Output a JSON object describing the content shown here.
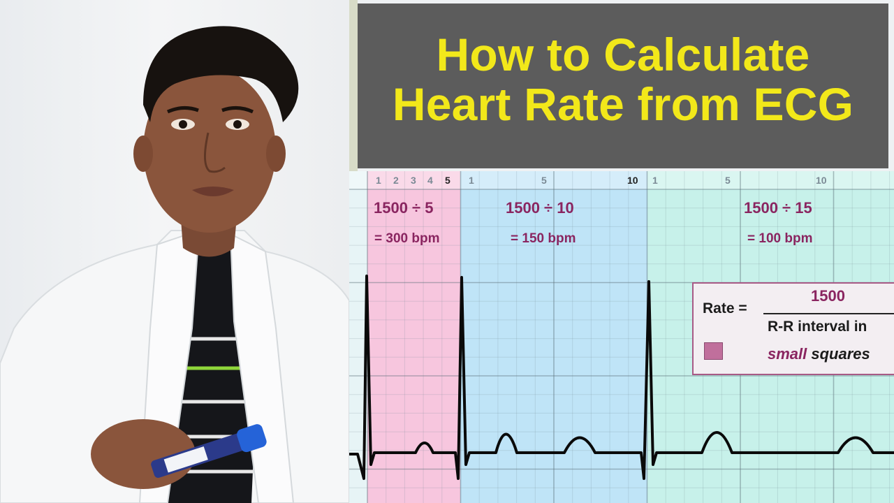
{
  "title": {
    "line1": "How to Calculate",
    "line2": "Heart Rate from ECG"
  },
  "ruler": {
    "pink": [
      "1",
      "2",
      "3",
      "4",
      "5"
    ],
    "blue": [
      "1",
      "5",
      "10"
    ],
    "green": [
      "1",
      "5",
      "10"
    ]
  },
  "zones": [
    {
      "formula": "1500 ÷ 5",
      "result": "= 300 bpm",
      "color": "#f7c6de"
    },
    {
      "formula": "1500 ÷ 10",
      "result": "= 150 bpm",
      "color": "#bfe4f7"
    },
    {
      "formula": "1500 ÷ 15",
      "result": "= 100 bpm",
      "color": "#c7f1ea"
    }
  ],
  "rate_box": {
    "label": "Rate =",
    "numerator": "1500",
    "denominator_line1": "R-R interval in",
    "denominator_emph": "small",
    "denominator_rest": " squares"
  },
  "colors": {
    "title_text": "#f2e81a",
    "banner_bg": "#5c5c5c",
    "formula_text": "#8a2560"
  }
}
